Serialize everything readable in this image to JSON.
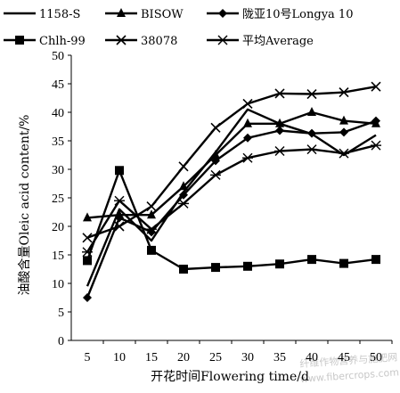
{
  "watermark": {
    "line1": "纤维作物营养与施肥网",
    "line2": "www.fibercrops.com"
  },
  "chart_data": {
    "type": "line",
    "xlabel": "开花时间Flowering time/d",
    "ylabel": "油酸含量Oleic acid content/%",
    "x": [
      5,
      10,
      15,
      20,
      25,
      30,
      35,
      40,
      45,
      50
    ],
    "xlim": [
      2.5,
      52.5
    ],
    "ylim": [
      0,
      50
    ],
    "yticks": [
      0,
      5,
      10,
      15,
      20,
      25,
      30,
      35,
      40,
      45,
      50
    ],
    "grid": false,
    "legend_position": "top",
    "series": [
      {
        "name": "1158-S",
        "marker": "none",
        "values": [
          9.5,
          23.0,
          17.5,
          26.0,
          33.0,
          40.5,
          38.0,
          36.2,
          32.5,
          36.0
        ]
      },
      {
        "name": "BISOW",
        "marker": "triangle",
        "values": [
          21.5,
          22.0,
          22.0,
          27.0,
          32.5,
          38.0,
          38.0,
          40.0,
          38.5,
          38.0
        ]
      },
      {
        "name": "陇亚10号Longya 10",
        "marker": "diamond",
        "values": [
          7.5,
          21.5,
          19.0,
          25.5,
          31.5,
          35.5,
          36.8,
          36.3,
          36.5,
          38.5
        ]
      },
      {
        "name": "Chlh-99",
        "marker": "square",
        "values": [
          14.0,
          29.8,
          15.8,
          12.5,
          12.8,
          13.0,
          13.4,
          14.2,
          13.5,
          14.2
        ]
      },
      {
        "name": "38078",
        "marker": "x",
        "values": [
          18.0,
          20.0,
          23.5,
          30.5,
          37.3,
          41.5,
          43.3,
          43.2,
          43.5,
          44.5
        ]
      },
      {
        "name": "平均Average",
        "marker": "asterisk",
        "values": [
          15.5,
          24.5,
          19.5,
          24.0,
          29.0,
          32.0,
          33.2,
          33.5,
          32.8,
          34.2
        ]
      }
    ]
  }
}
